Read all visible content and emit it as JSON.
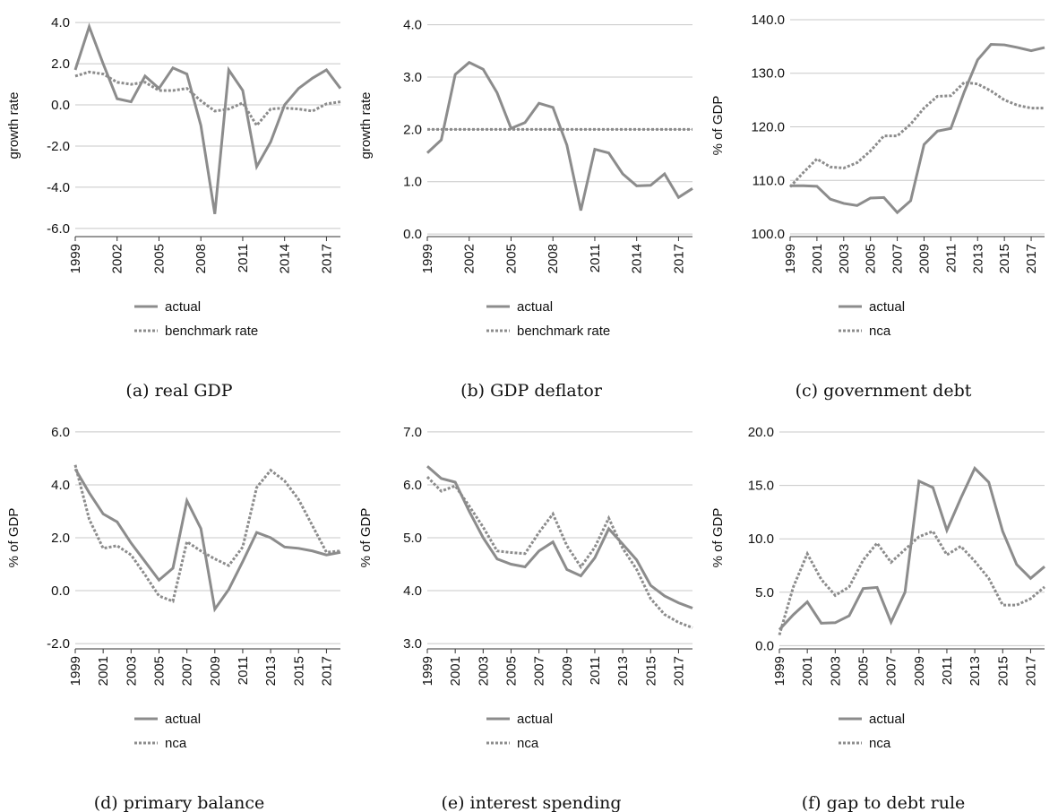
{
  "chart_data": [
    {
      "type": "line",
      "title": "(a) real GDP",
      "ylabel": "growth rate",
      "x": [
        1999,
        2000,
        2001,
        2002,
        2003,
        2004,
        2005,
        2006,
        2007,
        2008,
        2009,
        2010,
        2011,
        2012,
        2013,
        2014,
        2015,
        2016,
        2017,
        2018
      ],
      "xlim": [
        1999,
        2018
      ],
      "xticks": [
        1999,
        2002,
        2005,
        2008,
        2011,
        2014,
        2017
      ],
      "ylim": [
        -6.4,
        4.4
      ],
      "yticks": [
        {
          "value": -6,
          "label": "-6.0"
        },
        {
          "value": -4,
          "label": "-4.0"
        },
        {
          "value": -2,
          "label": "-2.0"
        },
        {
          "value": 0,
          "label": "0.0"
        },
        {
          "value": 2,
          "label": "2.0"
        },
        {
          "value": 4,
          "label": "4.0"
        }
      ],
      "grid": true,
      "series": [
        {
          "name": "actual",
          "color": "#8c8c8c",
          "style": "solid",
          "values": [
            1.7,
            3.8,
            2.0,
            0.3,
            0.15,
            1.4,
            0.8,
            1.8,
            1.5,
            -1.0,
            -5.3,
            1.7,
            0.7,
            -3.0,
            -1.8,
            0.0,
            0.8,
            1.3,
            1.7,
            0.8
          ]
        },
        {
          "name": "benchmark rate",
          "color": "#8c8c8c",
          "style": "dotted",
          "values": [
            1.4,
            1.6,
            1.5,
            1.1,
            1.0,
            1.1,
            0.7,
            0.7,
            0.8,
            0.2,
            -0.3,
            -0.2,
            0.1,
            -1.0,
            -0.2,
            -0.15,
            -0.2,
            -0.3,
            0.05,
            0.15
          ]
        }
      ]
    },
    {
      "type": "line",
      "title": "(b) GDP deflator",
      "ylabel": "growth rate",
      "x": [
        1999,
        2000,
        2001,
        2002,
        2003,
        2004,
        2005,
        2006,
        2007,
        2008,
        2009,
        2010,
        2011,
        2012,
        2013,
        2014,
        2015,
        2016,
        2017,
        2018
      ],
      "xlim": [
        1999,
        2018
      ],
      "xticks": [
        1999,
        2002,
        2005,
        2008,
        2011,
        2014,
        2017
      ],
      "ylim": [
        -0.05,
        4.2
      ],
      "yticks": [
        {
          "value": 0,
          "label": "0.0"
        },
        {
          "value": 1,
          "label": "1.0"
        },
        {
          "value": 2,
          "label": "2.0"
        },
        {
          "value": 3,
          "label": "3.0"
        },
        {
          "value": 4,
          "label": "4.0"
        }
      ],
      "grid": true,
      "series": [
        {
          "name": "actual",
          "color": "#8c8c8c",
          "style": "solid",
          "values": [
            1.55,
            1.8,
            3.05,
            3.28,
            3.15,
            2.7,
            2.02,
            2.13,
            2.5,
            2.42,
            1.7,
            0.45,
            1.62,
            1.55,
            1.15,
            0.92,
            0.93,
            1.15,
            0.7,
            0.87
          ]
        },
        {
          "name": "benchmark rate",
          "color": "#8c8c8c",
          "style": "dotted",
          "values": [
            2,
            2,
            2,
            2,
            2,
            2,
            2,
            2,
            2,
            2,
            2,
            2,
            2,
            2,
            2,
            2,
            2,
            2,
            2,
            2
          ]
        }
      ]
    },
    {
      "type": "line",
      "title": "(c) government debt",
      "ylabel": "% of GDP",
      "x": [
        1999,
        2000,
        2001,
        2002,
        2003,
        2004,
        2005,
        2006,
        2007,
        2008,
        2009,
        2010,
        2011,
        2012,
        2013,
        2014,
        2015,
        2016,
        2017,
        2018
      ],
      "xlim": [
        1999,
        2018
      ],
      "xticks": [
        1999,
        2001,
        2003,
        2005,
        2007,
        2009,
        2011,
        2013,
        2015,
        2017
      ],
      "ylim": [
        99.5,
        141
      ],
      "yticks": [
        {
          "value": 100,
          "label": "100.0"
        },
        {
          "value": 110,
          "label": "110.0"
        },
        {
          "value": 120,
          "label": "120.0"
        },
        {
          "value": 130,
          "label": "130.0"
        },
        {
          "value": 140,
          "label": "140.0"
        }
      ],
      "grid": true,
      "series": [
        {
          "name": "actual",
          "color": "#8c8c8c",
          "style": "solid",
          "values": [
            109,
            109,
            108.9,
            106.5,
            105.7,
            105.3,
            106.7,
            106.8,
            104.0,
            106.2,
            116.7,
            119.2,
            119.7,
            126.5,
            132.5,
            135.4,
            135.3,
            134.8,
            134.2,
            134.8
          ]
        },
        {
          "name": "nca",
          "color": "#8c8c8c",
          "style": "dotted",
          "values": [
            108.8,
            111.5,
            114.0,
            112.5,
            112.3,
            113.3,
            115.5,
            118.3,
            118.3,
            120.5,
            123.5,
            125.7,
            125.8,
            128.3,
            128.0,
            126.7,
            125.0,
            124.0,
            123.5,
            123.5
          ]
        }
      ]
    },
    {
      "type": "line",
      "title": "(d) primary balance",
      "ylabel": "% of GDP",
      "x": [
        1999,
        2000,
        2001,
        2002,
        2003,
        2004,
        2005,
        2006,
        2007,
        2008,
        2009,
        2010,
        2011,
        2012,
        2013,
        2014,
        2015,
        2016,
        2017,
        2018
      ],
      "xlim": [
        1999,
        2018
      ],
      "xticks": [
        1999,
        2001,
        2003,
        2005,
        2007,
        2009,
        2011,
        2013,
        2015,
        2017
      ],
      "ylim": [
        -2.2,
        6.2
      ],
      "yticks": [
        {
          "value": -2,
          "label": "-2.0"
        },
        {
          "value": 0,
          "label": "0.0"
        },
        {
          "value": 2,
          "label": "2.0"
        },
        {
          "value": 4,
          "label": "4.0"
        },
        {
          "value": 6,
          "label": "6.0"
        }
      ],
      "grid": true,
      "series": [
        {
          "name": "actual",
          "color": "#8c8c8c",
          "style": "solid",
          "values": [
            4.6,
            3.7,
            2.9,
            2.6,
            1.8,
            1.1,
            0.4,
            0.85,
            3.4,
            2.35,
            -0.7,
            0.05,
            1.1,
            2.2,
            2.0,
            1.65,
            1.6,
            1.5,
            1.35,
            1.45
          ]
        },
        {
          "name": "nca",
          "color": "#8c8c8c",
          "style": "dotted",
          "values": [
            4.75,
            2.7,
            1.6,
            1.7,
            1.35,
            0.6,
            -0.2,
            -0.4,
            1.85,
            1.5,
            1.2,
            0.95,
            1.65,
            3.9,
            4.55,
            4.15,
            3.45,
            2.45,
            1.45,
            1.5
          ]
        }
      ]
    },
    {
      "type": "line",
      "title": "(e) interest spending",
      "ylabel": "% of GDP",
      "x": [
        1999,
        2000,
        2001,
        2002,
        2003,
        2004,
        2005,
        2006,
        2007,
        2008,
        2009,
        2010,
        2011,
        2012,
        2013,
        2014,
        2015,
        2016,
        2017,
        2018
      ],
      "xlim": [
        1999,
        2018
      ],
      "xticks": [
        1999,
        2001,
        2003,
        2005,
        2007,
        2009,
        2011,
        2013,
        2015,
        2017
      ],
      "ylim": [
        2.9,
        7.1
      ],
      "yticks": [
        {
          "value": 3,
          "label": "3.0"
        },
        {
          "value": 4,
          "label": "4.0"
        },
        {
          "value": 5,
          "label": "5.0"
        },
        {
          "value": 6,
          "label": "6.0"
        },
        {
          "value": 7,
          "label": "7.0"
        }
      ],
      "grid": true,
      "series": [
        {
          "name": "actual",
          "color": "#8c8c8c",
          "style": "solid",
          "values": [
            6.35,
            6.12,
            6.05,
            5.5,
            5.0,
            4.6,
            4.5,
            4.45,
            4.75,
            4.92,
            4.4,
            4.28,
            4.62,
            5.17,
            4.88,
            4.58,
            4.1,
            3.9,
            3.77,
            3.67
          ]
        },
        {
          "name": "nca",
          "color": "#8c8c8c",
          "style": "dotted",
          "values": [
            6.15,
            5.88,
            5.98,
            5.6,
            5.2,
            4.75,
            4.72,
            4.7,
            5.1,
            5.45,
            4.85,
            4.45,
            4.82,
            5.37,
            4.8,
            4.4,
            3.85,
            3.55,
            3.4,
            3.3
          ]
        }
      ]
    },
    {
      "type": "line",
      "title": "(f) gap to debt rule",
      "ylabel": "% of GDP",
      "x": [
        1999,
        2000,
        2001,
        2002,
        2003,
        2004,
        2005,
        2006,
        2007,
        2008,
        2009,
        2010,
        2011,
        2012,
        2013,
        2014,
        2015,
        2016,
        2017,
        2018
      ],
      "xlim": [
        1999,
        2018
      ],
      "xticks": [
        1999,
        2001,
        2003,
        2005,
        2007,
        2009,
        2011,
        2013,
        2015,
        2017
      ],
      "ylim": [
        -0.3,
        20.5
      ],
      "yticks": [
        {
          "value": 0,
          "label": "0.0"
        },
        {
          "value": 5,
          "label": "5.0"
        },
        {
          "value": 10,
          "label": "10.0"
        },
        {
          "value": 15,
          "label": "15.0"
        },
        {
          "value": 20,
          "label": "20.0"
        }
      ],
      "grid": true,
      "series": [
        {
          "name": "actual",
          "color": "#8c8c8c",
          "style": "solid",
          "values": [
            1.5,
            2.9,
            4.1,
            2.1,
            2.15,
            2.8,
            5.35,
            5.45,
            2.2,
            5.0,
            15.4,
            14.8,
            10.8,
            13.8,
            16.6,
            15.3,
            10.7,
            7.6,
            6.3,
            7.4
          ]
        },
        {
          "name": "nca",
          "color": "#8c8c8c",
          "style": "dotted",
          "values": [
            1.0,
            5.5,
            8.6,
            6.2,
            4.7,
            5.5,
            8.0,
            9.6,
            7.8,
            9.0,
            10.2,
            10.7,
            8.5,
            9.3,
            7.9,
            6.3,
            3.8,
            3.8,
            4.4,
            5.5
          ]
        }
      ]
    }
  ]
}
